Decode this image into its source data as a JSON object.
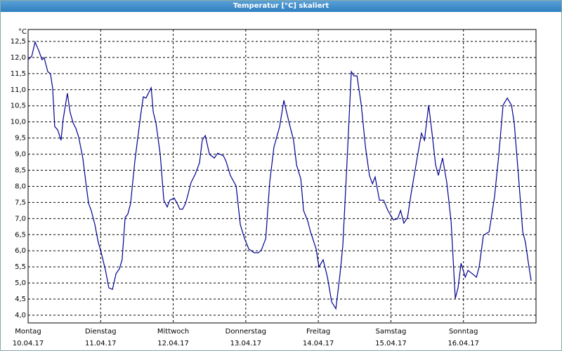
{
  "chart_data": {
    "type": "line",
    "title": "Temperatur [°C] skaliert",
    "ylabel": "°C",
    "grid": true,
    "color": "#000090",
    "xlim": [
      0,
      168
    ],
    "xticks": [
      {
        "value": 0,
        "label": "Montag",
        "sublabel": "10.04.17"
      },
      {
        "value": 24,
        "label": "Dienstag",
        "sublabel": "11.04.17"
      },
      {
        "value": 48,
        "label": "Mittwoch",
        "sublabel": "12.04.17"
      },
      {
        "value": 72,
        "label": "Donnerstag",
        "sublabel": "13.04.17"
      },
      {
        "value": 96,
        "label": "Freitag",
        "sublabel": "14.04.17"
      },
      {
        "value": 120,
        "label": "Samstag",
        "sublabel": "15.04.17"
      },
      {
        "value": 144,
        "label": "Sonntag",
        "sublabel": "16.04.17"
      }
    ],
    "ylim": [
      3.76,
      12.87
    ],
    "yticks": [
      {
        "value": 4,
        "label": "4,0"
      },
      {
        "value": 4.5,
        "label": "4,5"
      },
      {
        "value": 5,
        "label": "5,0"
      },
      {
        "value": 5.5,
        "label": "5,5"
      },
      {
        "value": 6,
        "label": "6,0"
      },
      {
        "value": 6.5,
        "label": "6,5"
      },
      {
        "value": 7,
        "label": "7,0"
      },
      {
        "value": 7.5,
        "label": "7,5"
      },
      {
        "value": 8,
        "label": "8,0"
      },
      {
        "value": 8.5,
        "label": "8,5"
      },
      {
        "value": 9,
        "label": "9,0"
      },
      {
        "value": 9.5,
        "label": "9,5"
      },
      {
        "value": 10,
        "label": "10,0"
      },
      {
        "value": 10.5,
        "label": "10,5"
      },
      {
        "value": 11,
        "label": "11,0"
      },
      {
        "value": 11.5,
        "label": "11,5"
      },
      {
        "value": 12,
        "label": "12,0"
      },
      {
        "value": 12.5,
        "label": "12,5"
      }
    ],
    "x": [
      0,
      1.2,
      2.3,
      3.5,
      4.6,
      5.3,
      6.5,
      7.4,
      8.1,
      8.8,
      9.8,
      10.9,
      11.6,
      13.0,
      13.9,
      14.9,
      15.8,
      16.7,
      18.1,
      19.1,
      20.0,
      20.9,
      22.1,
      23.2,
      24.2,
      25.6,
      26.7,
      27.9,
      29.1,
      30.2,
      31.1,
      32.1,
      33.0,
      33.9,
      35.3,
      37.2,
      38.1,
      39.0,
      40.7,
      41.4,
      42.3,
      43.7,
      44.9,
      46.0,
      46.9,
      48.3,
      49.3,
      50.2,
      51.1,
      52.1,
      53.0,
      53.9,
      55.3,
      56.7,
      57.6,
      58.6,
      60.0,
      61.6,
      62.7,
      64.6,
      65.5,
      66.9,
      68.8,
      70.2,
      71.6,
      73.0,
      74.8,
      76.2,
      77.2,
      78.6,
      79.9,
      81.3,
      83.2,
      84.6,
      85.5,
      86.5,
      87.8,
      88.8,
      90.2,
      91.1,
      92.5,
      93.4,
      95.3,
      96.2,
      97.6,
      99.0,
      100.4,
      101.8,
      103.2,
      104.1,
      105.5,
      106.9,
      107.8,
      108.8,
      110.2,
      111.6,
      112.9,
      113.9,
      114.8,
      116.2,
      117.6,
      119.0,
      120.8,
      122.2,
      123.2,
      124.3,
      125.5,
      126.7,
      128.3,
      130.1,
      131.1,
      132.5,
      133.6,
      134.8,
      135.7,
      137.1,
      138.5,
      139.9,
      141.3,
      142.2,
      143.2,
      144.6,
      145.5,
      146.9,
      148.3,
      149.2,
      150.6,
      152.5,
      154.3,
      155.7,
      157.1,
      158.5,
      159.9,
      160.8,
      162.2,
      163.6,
      164.5,
      165.5,
      166.4
    ],
    "values": [
      11.93,
      12.04,
      12.48,
      12.22,
      11.93,
      12.0,
      11.56,
      11.5,
      11.06,
      9.86,
      9.75,
      9.43,
      10.08,
      10.89,
      10.3,
      9.97,
      9.8,
      9.54,
      8.88,
      8.12,
      7.47,
      7.25,
      6.81,
      6.27,
      5.94,
      5.39,
      4.85,
      4.8,
      5.29,
      5.44,
      5.72,
      7.03,
      7.14,
      7.47,
      8.77,
      10.19,
      10.78,
      10.74,
      11.06,
      10.3,
      9.97,
      8.99,
      7.57,
      7.36,
      7.57,
      7.64,
      7.47,
      7.29,
      7.29,
      7.47,
      7.79,
      8.12,
      8.38,
      8.73,
      9.43,
      9.58,
      8.99,
      8.88,
      9.03,
      8.95,
      8.77,
      8.34,
      8.01,
      6.81,
      6.38,
      6.05,
      5.94,
      5.94,
      6.03,
      6.38,
      8.12,
      9.21,
      9.86,
      10.67,
      10.3,
      9.91,
      9.43,
      8.66,
      8.23,
      7.25,
      6.92,
      6.59,
      6.05,
      5.5,
      5.72,
      5.18,
      4.41,
      4.2,
      5.29,
      6.16,
      8.77,
      11.56,
      11.43,
      11.43,
      10.52,
      9.21,
      8.34,
      8.08,
      8.29,
      7.57,
      7.57,
      7.25,
      6.96,
      6.99,
      7.25,
      6.86,
      7.03,
      7.79,
      8.66,
      9.65,
      9.43,
      10.52,
      9.65,
      8.66,
      8.34,
      8.88,
      8.12,
      6.92,
      4.52,
      4.85,
      5.61,
      5.18,
      5.39,
      5.29,
      5.18,
      5.5,
      6.48,
      6.59,
      7.68,
      8.99,
      10.52,
      10.74,
      10.52,
      9.97,
      8.34,
      6.59,
      6.27,
      5.61,
      5.07
    ]
  }
}
